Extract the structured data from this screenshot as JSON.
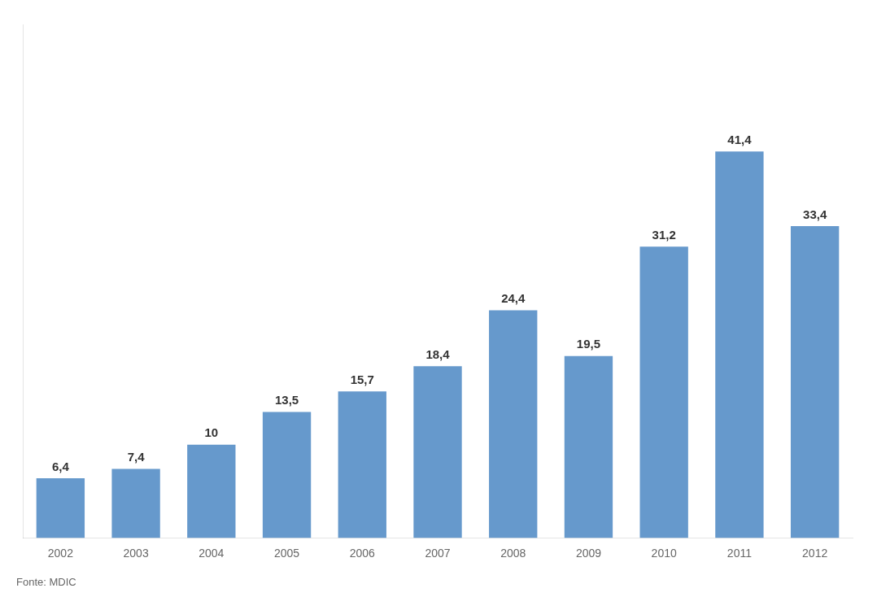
{
  "chart_data": {
    "type": "bar",
    "categories": [
      "2002",
      "2003",
      "2004",
      "2005",
      "2006",
      "2007",
      "2008",
      "2009",
      "2010",
      "2011",
      "2012"
    ],
    "values": [
      6.4,
      7.4,
      10,
      13.5,
      15.7,
      18.4,
      24.4,
      19.5,
      31.2,
      41.4,
      33.4
    ],
    "value_labels": [
      "6,4",
      "7,4",
      "10",
      "13,5",
      "15,7",
      "18,4",
      "24,4",
      "19,5",
      "31,2",
      "41,4",
      "33,4"
    ],
    "data_labels": true,
    "color": "#6699CC",
    "ylim": [
      0,
      55
    ],
    "grid": false,
    "tick_labels": "x",
    "annotations": [
      "Fonte: MDIC"
    ]
  }
}
